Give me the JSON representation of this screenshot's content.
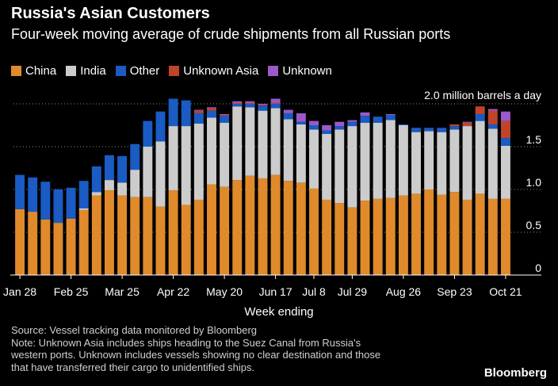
{
  "header": {
    "title": "Russia's Asian Customers",
    "subtitle": "Four-week moving average of crude shipments from all Russian ports"
  },
  "legend": [
    {
      "label": "China",
      "color": "#e08a2c"
    },
    {
      "label": "India",
      "color": "#cccccc"
    },
    {
      "label": "Other",
      "color": "#1a5bc4"
    },
    {
      "label": "Unknown Asia",
      "color": "#c0442a"
    },
    {
      "label": "Unknown",
      "color": "#9b59c9"
    }
  ],
  "footer": {
    "source": "Source: Vessel tracking data monitored by Bloomberg",
    "note_lines": [
      "Note: Unknown Asia includes ships heading to the Suez Canal from Russia's",
      "western ports. Unknown includes vessels showing no clear destination and those",
      "that have transferred their cargo to unidentified ships."
    ],
    "brand": "Bloomberg"
  },
  "chart_data": {
    "type": "bar",
    "stacked": true,
    "title": "Russia's Asian Customers",
    "subtitle": "Four-week moving average of crude shipments from all Russian ports",
    "unit_label": "2.0 million barrels a day",
    "xlabel": "Week ending",
    "ylabel": "",
    "ylim": [
      0,
      2.0
    ],
    "yticks": [
      "0",
      "0.5",
      "1.0",
      "1.5"
    ],
    "grid": "dotted horizontal",
    "legend_position": "top",
    "x_tick_labels": [
      {
        "index": 0,
        "label": "Jan 28"
      },
      {
        "index": 4,
        "label": "Feb 25"
      },
      {
        "index": 8,
        "label": "Mar 25"
      },
      {
        "index": 12,
        "label": "Apr 22"
      },
      {
        "index": 16,
        "label": "May 20"
      },
      {
        "index": 20,
        "label": "Jun 17"
      },
      {
        "index": 23,
        "label": "Jul 8"
      },
      {
        "index": 26,
        "label": "Jul 29"
      },
      {
        "index": 30,
        "label": "Aug 26"
      },
      {
        "index": 34,
        "label": "Sep 23"
      },
      {
        "index": 38,
        "label": "Oct 21"
      }
    ],
    "series": [
      {
        "name": "China",
        "color": "#e08a2c",
        "values": [
          0.77,
          0.74,
          0.65,
          0.61,
          0.66,
          0.76,
          0.93,
          0.99,
          0.93,
          0.91,
          0.91,
          0.8,
          0.99,
          0.82,
          0.88,
          1.06,
          1.03,
          1.11,
          1.16,
          1.13,
          1.17,
          1.1,
          1.08,
          1.01,
          0.88,
          0.84,
          0.79,
          0.87,
          0.89,
          0.9,
          0.93,
          0.95,
          1.0,
          0.94,
          0.97,
          0.88,
          0.95,
          0.89,
          0.89
        ]
      },
      {
        "name": "India",
        "color": "#cccccc",
        "values": [
          0.0,
          0.0,
          0.0,
          0.0,
          0.0,
          0.02,
          0.04,
          0.12,
          0.15,
          0.32,
          0.59,
          0.76,
          0.75,
          0.92,
          0.89,
          0.78,
          0.75,
          0.86,
          0.8,
          0.79,
          0.78,
          0.72,
          0.68,
          0.69,
          0.77,
          0.86,
          0.95,
          0.91,
          0.89,
          0.91,
          0.82,
          0.72,
          0.68,
          0.73,
          0.73,
          0.86,
          0.85,
          0.82,
          0.62
        ]
      },
      {
        "name": "Other",
        "color": "#1a5bc4",
        "values": [
          0.4,
          0.4,
          0.44,
          0.39,
          0.36,
          0.32,
          0.3,
          0.29,
          0.31,
          0.3,
          0.3,
          0.35,
          0.32,
          0.3,
          0.12,
          0.08,
          0.08,
          0.03,
          0.04,
          0.06,
          0.05,
          0.07,
          0.03,
          0.05,
          0.04,
          0.04,
          0.05,
          0.08,
          0.07,
          0.06,
          0.01,
          0.05,
          0.04,
          0.05,
          0.04,
          0.0,
          0.08,
          0.05,
          0.09
        ]
      },
      {
        "name": "Unknown Asia",
        "color": "#c0442a",
        "values": [
          0,
          0,
          0,
          0,
          0,
          0,
          0,
          0,
          0,
          0,
          0,
          0,
          0,
          0,
          0.03,
          0.03,
          0.01,
          0.01,
          0.01,
          0.01,
          0.01,
          0.0,
          0.0,
          0.0,
          0.0,
          0.0,
          0.0,
          0.0,
          0.0,
          0.0,
          0.0,
          0.0,
          0.0,
          0.0,
          0.02,
          0.04,
          0.09,
          0.16,
          0.2
        ]
      },
      {
        "name": "Unknown",
        "color": "#9b59c9",
        "values": [
          0,
          0,
          0,
          0,
          0,
          0,
          0,
          0,
          0,
          0,
          0,
          0,
          0,
          0,
          0.01,
          0.01,
          0.01,
          0.02,
          0.02,
          0.01,
          0.05,
          0.04,
          0.1,
          0.05,
          0.06,
          0.05,
          0.02,
          0.04,
          0.0,
          0.01,
          0.0,
          0.0,
          0.0,
          0.0,
          0.0,
          0.01,
          0.0,
          0.02,
          0.11
        ]
      }
    ]
  }
}
